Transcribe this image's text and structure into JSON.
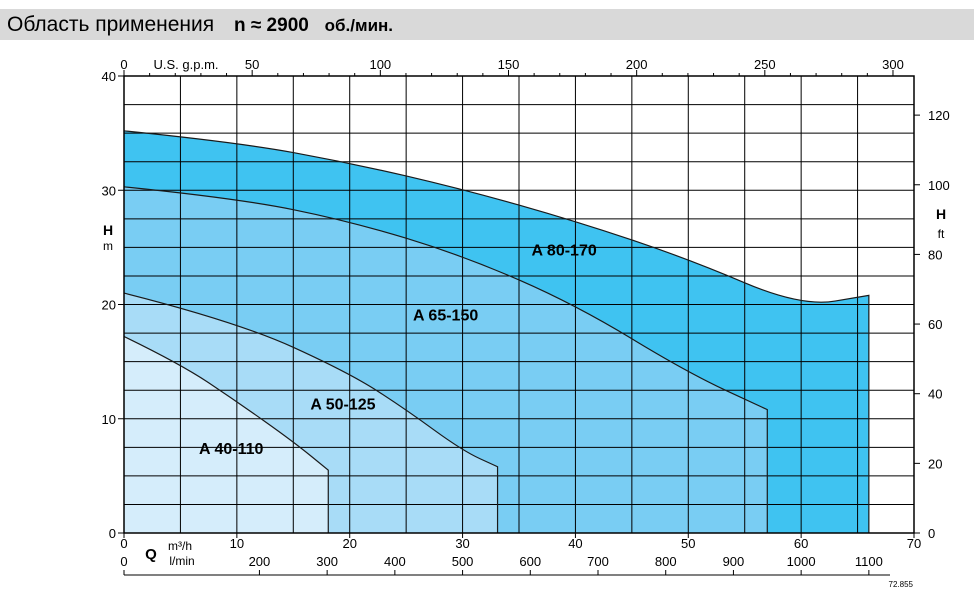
{
  "header": {
    "title": "Область применения",
    "speed": "n ≈ 2900",
    "speed_unit": "об./мин."
  },
  "colors": {
    "header_bg": "#d9d9d9",
    "a40": "#d5edfb",
    "a50": "#a8dcf7",
    "a65": "#79cdf3",
    "a80": "#3fc3f1",
    "grid": "#000000"
  },
  "chart_data": {
    "type": "area",
    "x_axis_bottom": {
      "label": "Q",
      "unit": "m³/h",
      "range": [
        0,
        70
      ],
      "ticks": [
        0,
        10,
        20,
        30,
        40,
        50,
        60,
        70
      ]
    },
    "x_axis_bottom2": {
      "unit": "l/min",
      "ticks": [
        "0",
        "200",
        "300",
        "400",
        "500",
        "600",
        "700",
        "800",
        "900",
        "1000",
        "1100"
      ]
    },
    "x_axis_top": {
      "unit": "U.S. g.p.m.",
      "ticks": [
        "0",
        "50",
        "100",
        "150",
        "200",
        "250",
        "300"
      ]
    },
    "y_axis_left": {
      "label": "H",
      "unit": "m",
      "range": [
        0,
        40
      ],
      "ticks": [
        0,
        10,
        20,
        30,
        40
      ]
    },
    "y_axis_right": {
      "label": "H",
      "unit": "ft",
      "ticks": [
        0,
        20,
        40,
        60,
        80,
        100,
        120
      ]
    },
    "grid": true,
    "series": [
      {
        "name": "A 80-170",
        "color": "#3fc3f1",
        "x": [
          0,
          10,
          20,
          30,
          40,
          50,
          60,
          66
        ],
        "y": [
          35.2,
          34.2,
          32.4,
          30.1,
          27.3,
          24.0,
          19.8,
          20.8
        ]
      },
      {
        "name": "A 65-150",
        "color": "#79cdf3",
        "x": [
          0,
          10,
          20,
          30,
          40,
          50,
          57
        ],
        "y": [
          30.3,
          29.3,
          27.3,
          24.3,
          20.0,
          14.0,
          10.8
        ]
      },
      {
        "name": "A 50-125",
        "color": "#a8dcf7",
        "x": [
          0,
          10,
          20,
          25,
          30,
          33.1
        ],
        "y": [
          21.0,
          18.5,
          14.0,
          10.8,
          7.2,
          5.8
        ]
      },
      {
        "name": "A 40-110",
        "color": "#d5edfb",
        "x": [
          0,
          5,
          10,
          15,
          18.1
        ],
        "y": [
          17.2,
          14.8,
          11.5,
          8.0,
          5.5
        ]
      }
    ],
    "annotations": [
      "A 80-170",
      "A 65-150",
      "A 50-125",
      "A 40-110",
      "72.855"
    ]
  }
}
